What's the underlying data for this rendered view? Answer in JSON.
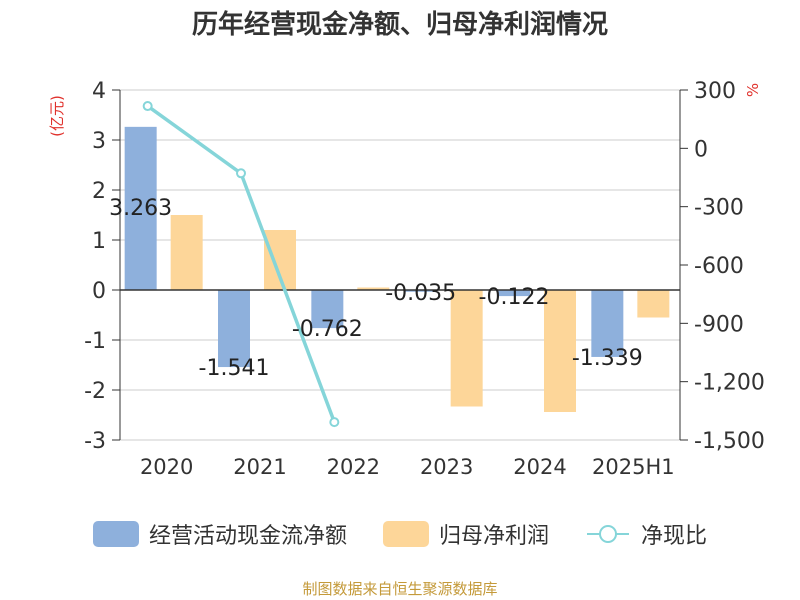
{
  "colors": {
    "bar1": "#8eb0dc",
    "bar2": "#fdd699",
    "line": "#85d5d9",
    "unit": "#e0312c",
    "source": "#c49a3a"
  },
  "footer": {
    "source": "制图数据来自恒生聚源数据库"
  },
  "chart_data": {
    "type": "bar",
    "title": "历年经营现金净额、归母净利润情况",
    "categories": [
      "2020",
      "2021",
      "2022",
      "2023",
      "2024",
      "2025H1"
    ],
    "y_left": {
      "label": "(亿元)",
      "ylim": [
        -3,
        4
      ],
      "ticks": [
        "4",
        "3",
        "2",
        "1",
        "0",
        "-1",
        "-2",
        "-3"
      ]
    },
    "y_right": {
      "label": "%",
      "ylim": [
        -1500,
        300
      ],
      "ticks": [
        "300",
        "0",
        "-300",
        "-600",
        "-900",
        "-1,200",
        "-1,500"
      ]
    },
    "grid": true,
    "legend_position": "bottom",
    "series": [
      {
        "name": "经营活动现金流净额",
        "type": "bar",
        "axis": "left",
        "values": [
          3.263,
          -1.541,
          -0.762,
          -0.035,
          -0.122,
          -1.339
        ],
        "labels": [
          "3.263",
          "-1.541",
          "-0.762",
          "-0.035",
          "-0.122",
          "-1.339"
        ]
      },
      {
        "name": "归母净利润",
        "type": "bar",
        "axis": "left",
        "values": [
          1.5,
          1.2,
          0.05,
          -2.33,
          -2.44,
          -0.55
        ]
      },
      {
        "name": "净现比",
        "type": "line",
        "axis": "right",
        "values": [
          217.5,
          -128.4,
          -1408,
          null,
          null,
          null
        ]
      }
    ]
  }
}
